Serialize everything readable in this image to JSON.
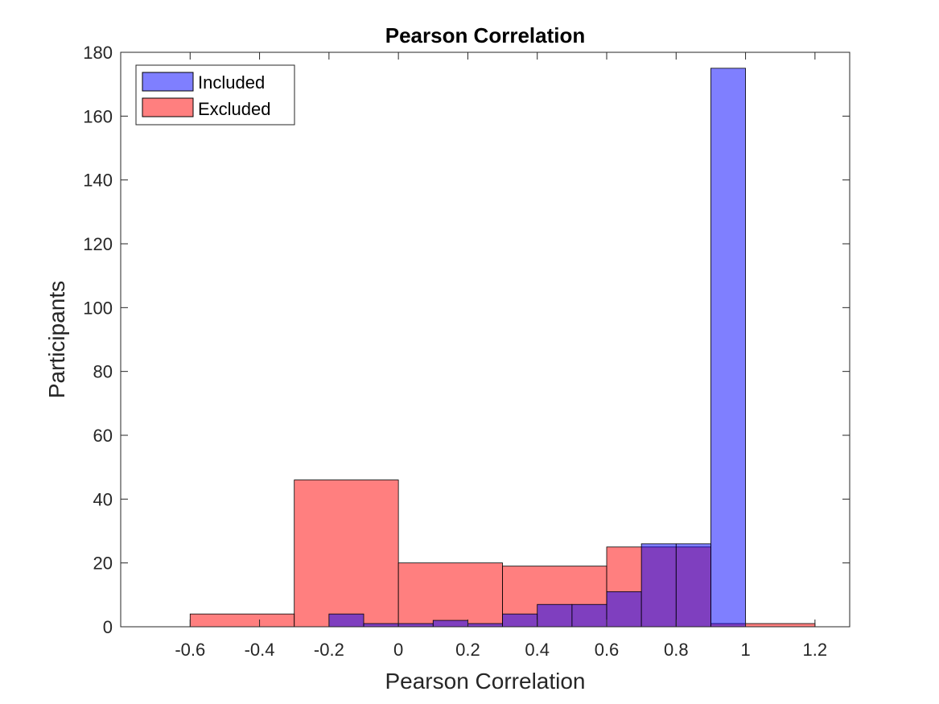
{
  "chart_data": {
    "type": "bar",
    "title": "Pearson Correlation",
    "xlabel": "Pearson Correlation",
    "ylabel": "Participants",
    "xlim": [
      -0.8,
      1.3
    ],
    "ylim": [
      0,
      180
    ],
    "xticks": [
      -0.6,
      -0.4,
      -0.2,
      0,
      0.2,
      0.4,
      0.6,
      0.8,
      1,
      1.2
    ],
    "xtick_labels": [
      "-0.6",
      "-0.4",
      "-0.2",
      "0",
      "0.2",
      "0.4",
      "0.6",
      "0.8",
      "1",
      "1.2"
    ],
    "yticks": [
      0,
      20,
      40,
      60,
      80,
      100,
      120,
      140,
      160,
      180
    ],
    "ytick_labels": [
      "0",
      "20",
      "40",
      "60",
      "80",
      "100",
      "120",
      "140",
      "160",
      "180"
    ],
    "grid": false,
    "legend_position": "top-left",
    "series": [
      {
        "name": "Included",
        "color": "#0000ff",
        "opacity": 0.5,
        "bins": [
          {
            "x0": -0.2,
            "x1": -0.1,
            "value": 4
          },
          {
            "x0": -0.1,
            "x1": 0.0,
            "value": 1
          },
          {
            "x0": 0.0,
            "x1": 0.1,
            "value": 1
          },
          {
            "x0": 0.1,
            "x1": 0.2,
            "value": 2
          },
          {
            "x0": 0.2,
            "x1": 0.3,
            "value": 1
          },
          {
            "x0": 0.3,
            "x1": 0.4,
            "value": 4
          },
          {
            "x0": 0.4,
            "x1": 0.5,
            "value": 7
          },
          {
            "x0": 0.5,
            "x1": 0.6,
            "value": 7
          },
          {
            "x0": 0.6,
            "x1": 0.7,
            "value": 11
          },
          {
            "x0": 0.7,
            "x1": 0.8,
            "value": 26
          },
          {
            "x0": 0.8,
            "x1": 0.9,
            "value": 26
          },
          {
            "x0": 0.9,
            "x1": 1.0,
            "value": 175
          }
        ]
      },
      {
        "name": "Excluded",
        "color": "#ff0000",
        "opacity": 0.5,
        "bins": [
          {
            "x0": -0.6,
            "x1": -0.3,
            "value": 4
          },
          {
            "x0": -0.3,
            "x1": 0.0,
            "value": 46
          },
          {
            "x0": 0.0,
            "x1": 0.3,
            "value": 20
          },
          {
            "x0": 0.3,
            "x1": 0.6,
            "value": 19
          },
          {
            "x0": 0.6,
            "x1": 0.9,
            "value": 25
          },
          {
            "x0": 0.9,
            "x1": 1.2,
            "value": 1
          }
        ]
      }
    ]
  }
}
